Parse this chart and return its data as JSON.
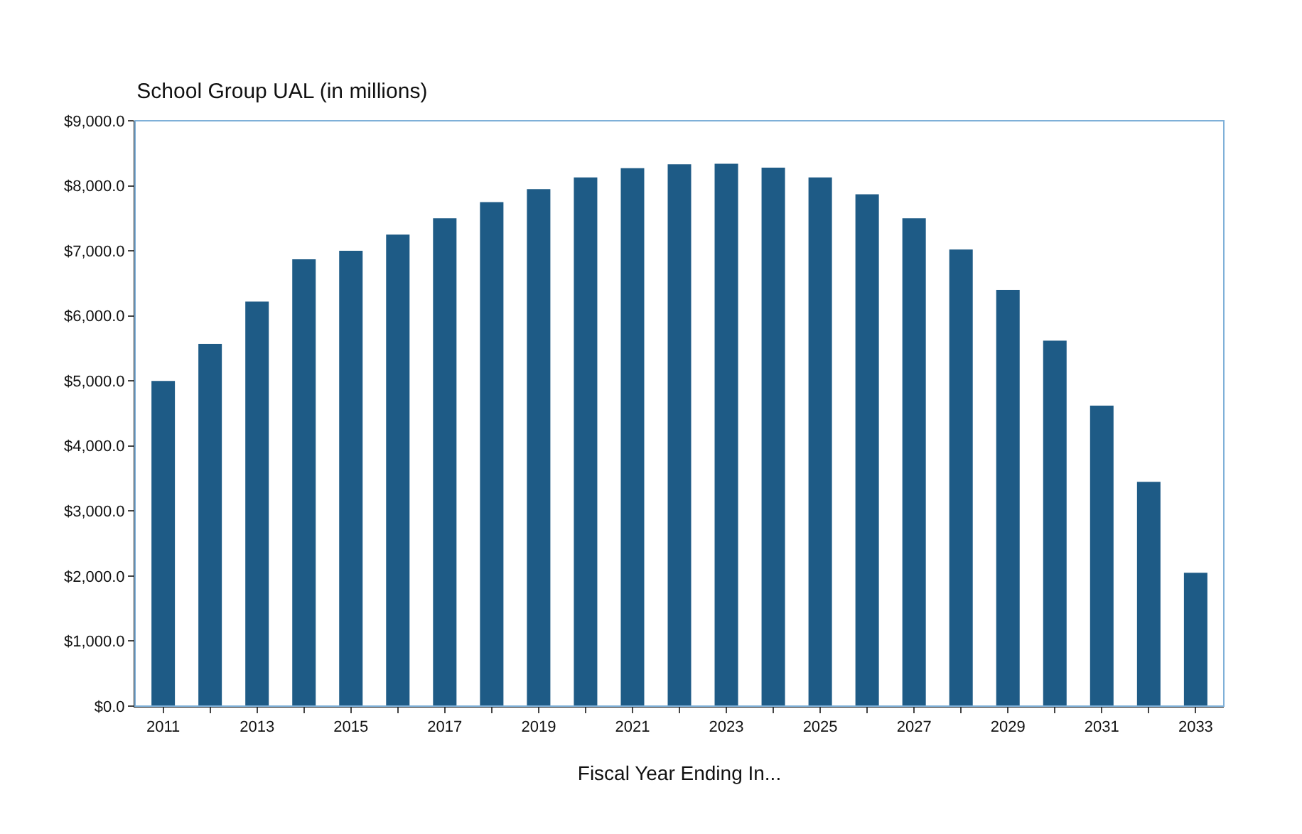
{
  "chart_data": {
    "type": "bar",
    "title": "School Group UAL (in millions)",
    "xlabel": "Fiscal Year Ending In...",
    "categories": [
      "2011",
      null,
      "2013",
      null,
      "2015",
      null,
      "2017",
      null,
      "2019",
      null,
      "2021",
      null,
      "2023",
      null,
      "2025",
      null,
      "2027",
      null,
      "2029",
      null,
      "2031",
      null,
      "2033"
    ],
    "values": [
      5000,
      5570,
      6220,
      6870,
      7000,
      7250,
      7500,
      7750,
      7950,
      8130,
      8270,
      8330,
      8340,
      8280,
      8130,
      7870,
      7500,
      7020,
      6400,
      5620,
      4620,
      3450,
      2050
    ],
    "color": "#1e5b86",
    "ylim": [
      0,
      9000
    ],
    "yticks": [
      {
        "value": 0,
        "label": "$0.0"
      },
      {
        "value": 1000,
        "label": "$1,000.0"
      },
      {
        "value": 2000,
        "label": "$2,000.0"
      },
      {
        "value": 3000,
        "label": "$3,000.0"
      },
      {
        "value": 4000,
        "label": "$4,000.0"
      },
      {
        "value": 5000,
        "label": "$5,000.0"
      },
      {
        "value": 6000,
        "label": "$6,000.0"
      },
      {
        "value": 7000,
        "label": "$7,000.0"
      },
      {
        "value": 8000,
        "label": "$8,000.0"
      },
      {
        "value": 9000,
        "label": "$9,000.0"
      }
    ],
    "grid": false
  }
}
